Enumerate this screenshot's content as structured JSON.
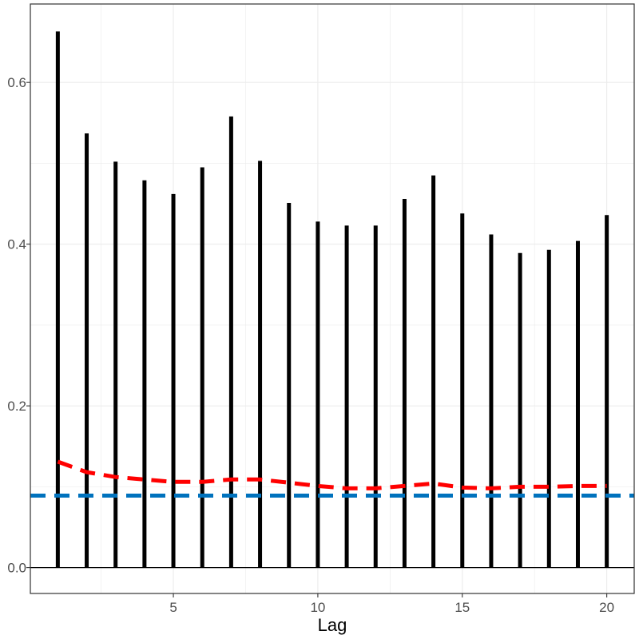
{
  "chart_data": {
    "type": "bar",
    "xlabel": "Lag",
    "ylabel": "",
    "title": "",
    "xlim": [
      0.05,
      20.95
    ],
    "ylim": [
      -0.032,
      0.697
    ],
    "x_ticks": [
      5,
      10,
      15,
      20
    ],
    "x_tick_labels": [
      "5",
      "10",
      "15",
      "20"
    ],
    "y_ticks": [
      0.0,
      0.2,
      0.4,
      0.6
    ],
    "y_tick_labels": [
      "0.0",
      "0.2",
      "0.4",
      "0.6"
    ],
    "grid": true,
    "x": [
      1,
      2,
      3,
      4,
      5,
      6,
      7,
      8,
      9,
      10,
      11,
      12,
      13,
      14,
      15,
      16,
      17,
      18,
      19,
      20
    ],
    "series": [
      {
        "type": "bar",
        "color": "#000000",
        "values": [
          0.663,
          0.537,
          0.502,
          0.479,
          0.462,
          0.495,
          0.558,
          0.503,
          0.451,
          0.428,
          0.423,
          0.423,
          0.456,
          0.485,
          0.438,
          0.412,
          0.389,
          0.393,
          0.404,
          0.436
        ]
      },
      {
        "type": "line",
        "style": "dashed",
        "color": "#ff0000",
        "values": [
          0.131,
          0.118,
          0.112,
          0.109,
          0.106,
          0.106,
          0.109,
          0.109,
          0.105,
          0.101,
          0.098,
          0.098,
          0.101,
          0.104,
          0.099,
          0.098,
          0.1,
          0.1,
          0.101,
          0.101
        ]
      },
      {
        "type": "hline",
        "style": "dashed",
        "color": "#0072bd",
        "value": 0.089
      }
    ],
    "zero_line": 0.0
  }
}
